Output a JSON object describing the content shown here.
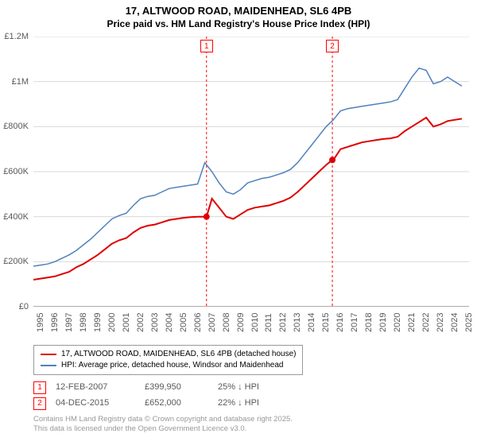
{
  "title": "17, ALTWOOD ROAD, MAIDENHEAD, SL6 4PB",
  "subtitle": "Price paid vs. HM Land Registry's House Price Index (HPI)",
  "chart": {
    "type": "line",
    "background_color": "#ffffff",
    "grid_color": "#d9d9d9",
    "axis_color": "#595959",
    "ylim": [
      0,
      1200000
    ],
    "ytick_step": 200000,
    "y_tick_labels": [
      "£0",
      "£200K",
      "£400K",
      "£600K",
      "£800K",
      "£1M",
      "£1.2M"
    ],
    "xlim": [
      1995,
      2025.5
    ],
    "x_tick_labels": [
      "1995",
      "1996",
      "1997",
      "1998",
      "1999",
      "2000",
      "2001",
      "2002",
      "2003",
      "2004",
      "2005",
      "2006",
      "2007",
      "2008",
      "2009",
      "2010",
      "2011",
      "2012",
      "2013",
      "2014",
      "2015",
      "2016",
      "2017",
      "2018",
      "2019",
      "2020",
      "2021",
      "2022",
      "2023",
      "2024",
      "2025"
    ],
    "series": [
      {
        "name": "price_paid",
        "label": "17, ALTWOOD ROAD, MAIDENHEAD, SL6 4PB (detached house)",
        "color": "#de0000",
        "line_width": 2,
        "x": [
          1995,
          1995.5,
          1996,
          1996.5,
          1997,
          1997.5,
          1998,
          1998.5,
          1999,
          1999.5,
          2000,
          2000.5,
          2001,
          2001.5,
          2002,
          2002.5,
          2003,
          2003.5,
          2004,
          2004.5,
          2005,
          2005.5,
          2006,
          2006.5,
          2007,
          2007.12,
          2007.5,
          2008,
          2008.5,
          2009,
          2009.5,
          2010,
          2010.5,
          2011,
          2011.5,
          2012,
          2012.5,
          2013,
          2013.5,
          2014,
          2014.5,
          2015,
          2015.5,
          2015.93,
          2016,
          2016.5,
          2017,
          2017.5,
          2018,
          2018.5,
          2019,
          2019.5,
          2020,
          2020.5,
          2021,
          2021.5,
          2022,
          2022.5,
          2023,
          2023.5,
          2024,
          2024.5,
          2025
        ],
        "y": [
          120000,
          125000,
          130000,
          135000,
          145000,
          155000,
          175000,
          190000,
          210000,
          230000,
          255000,
          280000,
          295000,
          305000,
          330000,
          350000,
          360000,
          365000,
          375000,
          385000,
          390000,
          395000,
          398000,
          399500,
          399950,
          399950,
          480000,
          440000,
          400000,
          390000,
          410000,
          430000,
          440000,
          445000,
          450000,
          460000,
          470000,
          485000,
          510000,
          540000,
          570000,
          600000,
          630000,
          652000,
          652000,
          700000,
          710000,
          720000,
          730000,
          735000,
          740000,
          745000,
          748000,
          755000,
          780000,
          800000,
          820000,
          840000,
          800000,
          810000,
          825000,
          830000,
          835000
        ]
      },
      {
        "name": "hpi",
        "label": "HPI: Average price, detached house, Windsor and Maidenhead",
        "color": "#4f81bd",
        "line_width": 1.5,
        "x": [
          1995,
          1995.5,
          1996,
          1996.5,
          1997,
          1997.5,
          1998,
          1998.5,
          1999,
          1999.5,
          2000,
          2000.5,
          2001,
          2001.5,
          2002,
          2002.5,
          2003,
          2003.5,
          2004,
          2004.5,
          2005,
          2005.5,
          2006,
          2006.5,
          2007,
          2007.5,
          2008,
          2008.5,
          2009,
          2009.5,
          2010,
          2010.5,
          2011,
          2011.5,
          2012,
          2012.5,
          2013,
          2013.5,
          2014,
          2014.5,
          2015,
          2015.5,
          2016,
          2016.5,
          2017,
          2017.5,
          2018,
          2018.5,
          2019,
          2019.5,
          2020,
          2020.5,
          2021,
          2021.5,
          2022,
          2022.5,
          2023,
          2023.5,
          2024,
          2024.5,
          2025
        ],
        "y": [
          180000,
          185000,
          190000,
          200000,
          215000,
          230000,
          250000,
          275000,
          300000,
          330000,
          360000,
          390000,
          405000,
          415000,
          450000,
          480000,
          490000,
          495000,
          510000,
          525000,
          530000,
          535000,
          540000,
          545000,
          640000,
          600000,
          550000,
          510000,
          500000,
          520000,
          550000,
          560000,
          570000,
          575000,
          585000,
          595000,
          610000,
          640000,
          680000,
          720000,
          760000,
          800000,
          830000,
          870000,
          880000,
          885000,
          890000,
          895000,
          900000,
          905000,
          910000,
          920000,
          970000,
          1020000,
          1060000,
          1050000,
          990000,
          1000000,
          1020000,
          1000000,
          980000
        ]
      }
    ],
    "sale_markers": [
      {
        "num": "1",
        "x": 2007.12,
        "y": 399950,
        "dash_color": "#f00"
      },
      {
        "num": "2",
        "x": 2015.93,
        "y": 652000,
        "dash_color": "#f00"
      }
    ],
    "label_fontsize": 11
  },
  "legend": {
    "items": [
      {
        "color": "#de0000",
        "label": "17, ALTWOOD ROAD, MAIDENHEAD, SL6 4PB (detached house)"
      },
      {
        "color": "#4f81bd",
        "label": "HPI: Average price, detached house, Windsor and Maidenhead"
      }
    ]
  },
  "marker_rows": [
    {
      "num": "1",
      "date": "12-FEB-2007",
      "price": "£399,950",
      "hpi": "25% ↓ HPI"
    },
    {
      "num": "2",
      "date": "04-DEC-2015",
      "price": "£652,000",
      "hpi": "22% ↓ HPI"
    }
  ],
  "credits": {
    "line1": "Contains HM Land Registry data © Crown copyright and database right 2025.",
    "line2": "This data is licensed under the Open Government Licence v3.0."
  }
}
